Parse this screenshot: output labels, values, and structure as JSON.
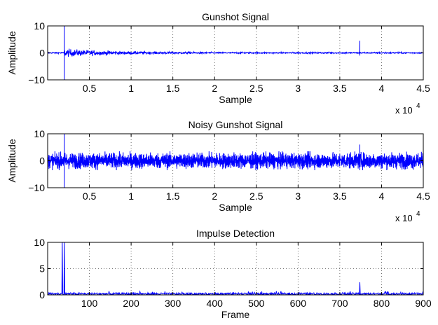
{
  "chart_data": [
    {
      "type": "line",
      "title": "Gunshot Signal",
      "xlabel": "Sample",
      "ylabel": "Amplitude",
      "xlim": [
        0,
        45000
      ],
      "ylim": [
        -10,
        10
      ],
      "x_ticks": [
        0.5,
        1,
        1.5,
        2,
        2.5,
        3,
        3.5,
        4,
        4.5
      ],
      "x_tick_labels": [
        "0.5",
        "1",
        "1.5",
        "2",
        "2.5",
        "3",
        "3.5",
        "4",
        "4.5"
      ],
      "y_ticks": [
        -10,
        0,
        10
      ],
      "y_tick_labels": [
        "−10",
        "0",
        "10"
      ],
      "x_exponent": {
        "base": "x 10",
        "power": "4"
      },
      "grid": true,
      "color": "#0000ff",
      "series": [
        {
          "signal": "gunshot",
          "baseline_noise": 0.25,
          "events": [
            {
              "x": 2000,
              "peak": 10,
              "trough": -10,
              "decay_amplitude": 1.2,
              "decay_until": 20000
            },
            {
              "x": 37400,
              "peak": 4.5,
              "trough": -1.0
            }
          ]
        }
      ]
    },
    {
      "type": "line",
      "title": "Noisy Gunshot Signal",
      "xlabel": "Sample",
      "ylabel": "Amplitude",
      "xlim": [
        0,
        45000
      ],
      "ylim": [
        -10,
        10
      ],
      "x_ticks": [
        0.5,
        1,
        1.5,
        2,
        2.5,
        3,
        3.5,
        4,
        4.5
      ],
      "x_tick_labels": [
        "0.5",
        "1",
        "1.5",
        "2",
        "2.5",
        "3",
        "3.5",
        "4",
        "4.5"
      ],
      "y_ticks": [
        -10,
        0,
        10
      ],
      "y_tick_labels": [
        "−10",
        "0",
        "10"
      ],
      "x_exponent": {
        "base": "x 10",
        "power": "4"
      },
      "grid": true,
      "color": "#0000ff",
      "series": [
        {
          "signal": "noisy gunshot",
          "noise_band": [
            -3.5,
            3.5
          ],
          "events": [
            {
              "x": 2000,
              "peak": 10,
              "trough": -10
            },
            {
              "x": 37400,
              "peak": 6,
              "trough": -3.5
            }
          ]
        }
      ]
    },
    {
      "type": "line",
      "title": "Impulse Detection",
      "xlabel": "Frame",
      "ylabel": "",
      "xlim": [
        0,
        900
      ],
      "ylim": [
        0,
        10
      ],
      "x_ticks": [
        100,
        200,
        300,
        400,
        500,
        600,
        700,
        800,
        900
      ],
      "x_tick_labels": [
        "100",
        "200",
        "300",
        "400",
        "500",
        "600",
        "700",
        "800",
        "900"
      ],
      "y_ticks": [
        0,
        5,
        10
      ],
      "y_tick_labels": [
        "0",
        "5",
        "10"
      ],
      "grid": true,
      "color": "#0000ff",
      "series": [
        {
          "signal": "impulse detection",
          "baseline_range": [
            0,
            0.4
          ],
          "events": [
            {
              "x": 35,
              "value": 10
            },
            {
              "x": 40,
              "value": 10
            },
            {
              "x": 748,
              "value": 2.4
            }
          ]
        }
      ]
    }
  ]
}
